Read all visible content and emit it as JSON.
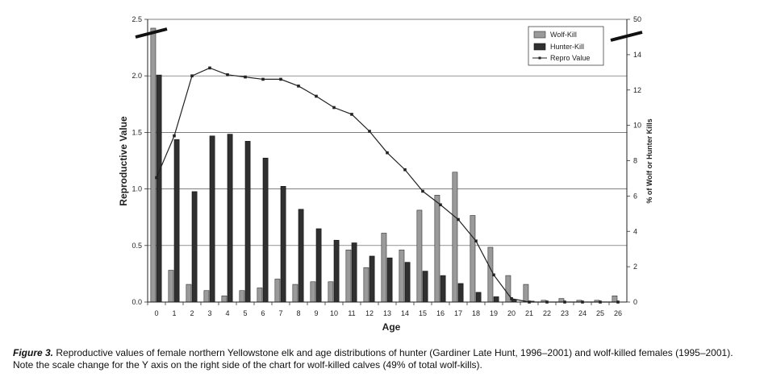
{
  "chart_data": {
    "type": "bar",
    "xlabel": "Age",
    "ylabel_left": "Reproductive Value",
    "ylabel_right": "% of Wolf or Hunter Kills",
    "categories": [
      "0",
      "1",
      "2",
      "3",
      "4",
      "5",
      "6",
      "7",
      "8",
      "9",
      "10",
      "11",
      "12",
      "13",
      "14",
      "15",
      "16",
      "17",
      "18",
      "19",
      "20",
      "21",
      "22",
      "23",
      "24",
      "25",
      "26"
    ],
    "y_left": {
      "min": 0,
      "max": 2.5,
      "ticks": [
        "0.0",
        "0.5",
        "1.0",
        "1.5",
        "2.0",
        "2.5"
      ]
    },
    "y_right": {
      "min": 0,
      "max": 16,
      "ticks": [
        "0",
        "2",
        "4",
        "6",
        "8",
        "10",
        "12",
        "14"
      ],
      "top_label": "50",
      "top_label_value": 50,
      "scale_break": true
    },
    "grid": "horizontal",
    "legend_position": "top-right",
    "series": [
      {
        "name": "Wolf-Kill",
        "style": "bar",
        "color": "#9a9a9a",
        "axis": "right",
        "values": [
          15.5,
          1.8,
          1.0,
          0.65,
          0.35,
          0.65,
          0.8,
          1.3,
          1.0,
          1.15,
          1.15,
          2.95,
          1.95,
          3.9,
          2.95,
          5.2,
          6.05,
          7.35,
          4.9,
          3.1,
          1.5,
          1.0,
          0.1,
          0.2,
          0.1,
          0.1,
          0.35
        ]
      },
      {
        "name": "Hunter-Kill",
        "style": "bar",
        "color": "#303030",
        "axis": "right",
        "values": [
          12.85,
          9.2,
          6.25,
          9.4,
          9.5,
          9.1,
          8.15,
          6.55,
          5.25,
          4.15,
          3.5,
          3.35,
          2.6,
          2.5,
          2.25,
          1.75,
          1.5,
          1.05,
          0.55,
          0.3,
          0.15,
          0.05,
          0.0,
          0.0,
          0.0,
          0.0,
          0.0
        ]
      },
      {
        "name": "Repro Value",
        "style": "line-marker",
        "color": "#222222",
        "axis": "left",
        "values": [
          1.1,
          1.47,
          2.0,
          2.07,
          2.01,
          1.99,
          1.97,
          1.97,
          1.91,
          1.82,
          1.72,
          1.66,
          1.51,
          1.32,
          1.17,
          0.98,
          0.86,
          0.73,
          0.54,
          0.24,
          0.03,
          0.0,
          0.0,
          0.0,
          0.0,
          0.0,
          0.0
        ]
      }
    ]
  },
  "caption": {
    "label": "Figure 3.",
    "text": " Reproductive values of female northern Yellowstone elk and age distributions of hunter (Gardiner Late Hunt, 1996–2001) and wolf-killed females (1995–2001). Note the scale change for the Y axis on the right side of the chart for wolf-killed calves (49% of total wolf-kills)."
  }
}
